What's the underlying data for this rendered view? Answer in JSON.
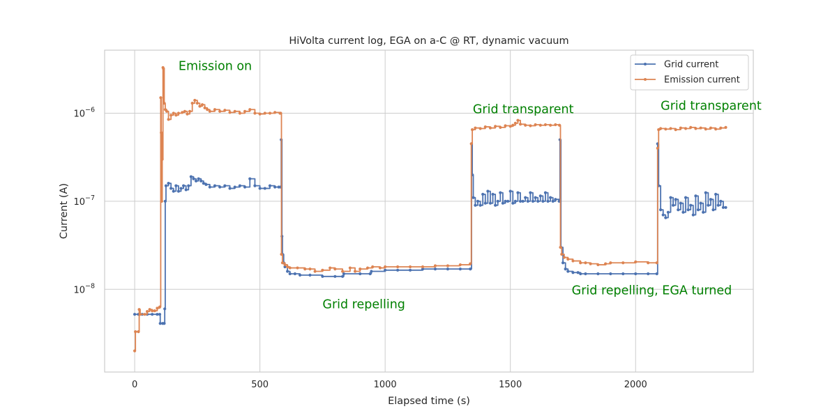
{
  "chart_data": {
    "type": "line",
    "title": "HiVolta current log, EGA on a-C @ RT, dynamic vacuum",
    "xlabel": "Elapsed time (s)",
    "ylabel": "Current (A)",
    "xlim": [
      -120,
      2470
    ],
    "ylim": [
      1.15e-09,
      5.2e-06
    ],
    "yscale": "log",
    "grid": true,
    "legend_position": "top-right",
    "x_ticks": [
      {
        "value": 0,
        "label": "0"
      },
      {
        "value": 500,
        "label": "500"
      },
      {
        "value": 1000,
        "label": "1000"
      },
      {
        "value": 1500,
        "label": "1500"
      },
      {
        "value": 2000,
        "label": "2000"
      }
    ],
    "y_ticks": [
      {
        "value": 1e-08,
        "base": "10",
        "exp": "−8"
      },
      {
        "value": 1e-07,
        "base": "10",
        "exp": "−7"
      },
      {
        "value": 1e-06,
        "base": "10",
        "exp": "−6"
      }
    ],
    "series": [
      {
        "name": "Grid current",
        "color": "#4c72b0",
        "points": [
          [
            0,
            5.2e-09
          ],
          [
            15,
            5.2e-09
          ],
          [
            30,
            5.2e-09
          ],
          [
            50,
            5.2e-09
          ],
          [
            70,
            5.2e-09
          ],
          [
            90,
            5.2e-09
          ],
          [
            100,
            5.2e-09
          ],
          [
            102,
            4.1e-09
          ],
          [
            112,
            4.1e-09
          ],
          [
            118,
            4.1e-09
          ],
          [
            120,
            6e-09
          ],
          [
            122,
            1e-07
          ],
          [
            125,
            1.5e-07
          ],
          [
            135,
            1.6e-07
          ],
          [
            145,
            1.4e-07
          ],
          [
            155,
            1.3e-07
          ],
          [
            165,
            1.5e-07
          ],
          [
            175,
            1.3e-07
          ],
          [
            185,
            1.4e-07
          ],
          [
            195,
            1.5e-07
          ],
          [
            205,
            1.35e-07
          ],
          [
            215,
            1.5e-07
          ],
          [
            225,
            1.9e-07
          ],
          [
            235,
            1.8e-07
          ],
          [
            245,
            1.7e-07
          ],
          [
            255,
            1.8e-07
          ],
          [
            265,
            1.7e-07
          ],
          [
            275,
            1.6e-07
          ],
          [
            285,
            1.55e-07
          ],
          [
            300,
            1.45e-07
          ],
          [
            320,
            1.5e-07
          ],
          [
            340,
            1.45e-07
          ],
          [
            360,
            1.5e-07
          ],
          [
            380,
            1.4e-07
          ],
          [
            400,
            1.45e-07
          ],
          [
            420,
            1.5e-07
          ],
          [
            440,
            1.45e-07
          ],
          [
            460,
            1.8e-07
          ],
          [
            480,
            1.5e-07
          ],
          [
            500,
            1.4e-07
          ],
          [
            520,
            1.4e-07
          ],
          [
            540,
            1.5e-07
          ],
          [
            560,
            1.45e-07
          ],
          [
            575,
            1.45e-07
          ],
          [
            582,
            1.45e-07
          ],
          [
            585,
            5e-07
          ],
          [
            588,
            4e-08
          ],
          [
            590,
            2.5e-08
          ],
          [
            595,
            2e-08
          ],
          [
            600,
            1.8e-08
          ],
          [
            610,
            1.6e-08
          ],
          [
            620,
            1.5e-08
          ],
          [
            640,
            1.5e-08
          ],
          [
            660,
            1.45e-08
          ],
          [
            700,
            1.45e-08
          ],
          [
            750,
            1.4e-08
          ],
          [
            800,
            1.4e-08
          ],
          [
            830,
            1.4e-08
          ],
          [
            835,
            1.5e-08
          ],
          [
            900,
            1.5e-08
          ],
          [
            940,
            1.5e-08
          ],
          [
            945,
            1.6e-08
          ],
          [
            1000,
            1.65e-08
          ],
          [
            1050,
            1.65e-08
          ],
          [
            1100,
            1.65e-08
          ],
          [
            1150,
            1.7e-08
          ],
          [
            1200,
            1.7e-08
          ],
          [
            1250,
            1.7e-08
          ],
          [
            1300,
            1.7e-08
          ],
          [
            1340,
            1.7e-08
          ],
          [
            1345,
            4.5e-07
          ],
          [
            1348,
            2e-07
          ],
          [
            1352,
            1.1e-07
          ],
          [
            1360,
            9e-08
          ],
          [
            1370,
            1e-07
          ],
          [
            1380,
            9e-08
          ],
          [
            1390,
            1.2e-07
          ],
          [
            1400,
            9.5e-08
          ],
          [
            1410,
            1.3e-07
          ],
          [
            1420,
            9.5e-08
          ],
          [
            1430,
            1.2e-07
          ],
          [
            1440,
            9e-08
          ],
          [
            1450,
            1e-07
          ],
          [
            1460,
            1.25e-07
          ],
          [
            1470,
            9.5e-08
          ],
          [
            1480,
            1e-07
          ],
          [
            1490,
            1e-07
          ],
          [
            1500,
            1.3e-07
          ],
          [
            1510,
            9.5e-08
          ],
          [
            1520,
            1e-07
          ],
          [
            1530,
            1.25e-07
          ],
          [
            1540,
            1e-07
          ],
          [
            1550,
            1e-07
          ],
          [
            1560,
            1.1e-07
          ],
          [
            1570,
            1e-07
          ],
          [
            1580,
            1.25e-07
          ],
          [
            1590,
            1e-07
          ],
          [
            1600,
            1.1e-07
          ],
          [
            1610,
            1e-07
          ],
          [
            1620,
            1.15e-07
          ],
          [
            1630,
            1e-07
          ],
          [
            1640,
            1.25e-07
          ],
          [
            1650,
            1e-07
          ],
          [
            1660,
            1.1e-07
          ],
          [
            1670,
            1e-07
          ],
          [
            1680,
            1.05e-07
          ],
          [
            1695,
            1e-07
          ],
          [
            1698,
            5e-07
          ],
          [
            1702,
            3e-08
          ],
          [
            1710,
            2e-08
          ],
          [
            1720,
            1.7e-08
          ],
          [
            1730,
            1.6e-08
          ],
          [
            1750,
            1.55e-08
          ],
          [
            1770,
            1.55e-08
          ],
          [
            1780,
            1.5e-08
          ],
          [
            1800,
            1.5e-08
          ],
          [
            1850,
            1.5e-08
          ],
          [
            1900,
            1.5e-08
          ],
          [
            1950,
            1.5e-08
          ],
          [
            2000,
            1.5e-08
          ],
          [
            2050,
            1.5e-08
          ],
          [
            2085,
            1.5e-08
          ],
          [
            2088,
            4.5e-07
          ],
          [
            2092,
            1.5e-07
          ],
          [
            2100,
            8e-08
          ],
          [
            2110,
            7e-08
          ],
          [
            2120,
            6.5e-08
          ],
          [
            2130,
            7.5e-08
          ],
          [
            2140,
            1.1e-07
          ],
          [
            2150,
            9e-08
          ],
          [
            2160,
            1.05e-07
          ],
          [
            2170,
            8e-08
          ],
          [
            2180,
            9.5e-08
          ],
          [
            2190,
            7.5e-08
          ],
          [
            2200,
            1.1e-07
          ],
          [
            2210,
            8e-08
          ],
          [
            2220,
            9e-08
          ],
          [
            2230,
            7e-08
          ],
          [
            2240,
            1.15e-07
          ],
          [
            2250,
            8e-08
          ],
          [
            2260,
            9.5e-08
          ],
          [
            2270,
            7.5e-08
          ],
          [
            2280,
            1.25e-07
          ],
          [
            2290,
            9e-08
          ],
          [
            2300,
            1.05e-07
          ],
          [
            2310,
            8e-08
          ],
          [
            2320,
            1.2e-07
          ],
          [
            2330,
            9e-08
          ],
          [
            2340,
            1e-07
          ],
          [
            2350,
            8.5e-08
          ],
          [
            2360,
            8.5e-08
          ]
        ]
      },
      {
        "name": "Emission current",
        "color": "#dd8452",
        "points": [
          [
            0,
            2e-09
          ],
          [
            3,
            3.3e-09
          ],
          [
            15,
            3.3e-09
          ],
          [
            18,
            5.9e-09
          ],
          [
            22,
            5.2e-09
          ],
          [
            40,
            5.2e-09
          ],
          [
            50,
            5.6e-09
          ],
          [
            60,
            5.9e-09
          ],
          [
            70,
            5.7e-09
          ],
          [
            80,
            5.7e-09
          ],
          [
            90,
            6.1e-09
          ],
          [
            100,
            6.3e-09
          ],
          [
            104,
            1.5e-06
          ],
          [
            106,
            6e-07
          ],
          [
            108,
            1e-07
          ],
          [
            110,
            3e-07
          ],
          [
            113,
            3.3e-06
          ],
          [
            115,
            3.2e-06
          ],
          [
            118,
            1.3e-06
          ],
          [
            122,
            1.1e-06
          ],
          [
            128,
            1.05e-06
          ],
          [
            135,
            8.5e-07
          ],
          [
            145,
            9.5e-07
          ],
          [
            155,
            1e-06
          ],
          [
            165,
            9.5e-07
          ],
          [
            175,
            1e-06
          ],
          [
            190,
            1.02e-06
          ],
          [
            200,
            1.05e-06
          ],
          [
            210,
            9.8e-07
          ],
          [
            220,
            1.05e-06
          ],
          [
            230,
            1.3e-06
          ],
          [
            240,
            1.4e-06
          ],
          [
            250,
            1.3e-06
          ],
          [
            260,
            1.2e-06
          ],
          [
            270,
            1.25e-06
          ],
          [
            280,
            1.15e-06
          ],
          [
            290,
            1.1e-06
          ],
          [
            300,
            1.05e-06
          ],
          [
            320,
            1.1e-06
          ],
          [
            340,
            1.05e-06
          ],
          [
            360,
            1.08e-06
          ],
          [
            380,
            1.02e-06
          ],
          [
            400,
            1.05e-06
          ],
          [
            420,
            1e-06
          ],
          [
            440,
            1.05e-06
          ],
          [
            460,
            1.1e-06
          ],
          [
            480,
            1e-06
          ],
          [
            500,
            9.8e-07
          ],
          [
            520,
            1e-06
          ],
          [
            540,
            1e-06
          ],
          [
            560,
            1.02e-06
          ],
          [
            580,
            1e-06
          ],
          [
            583,
            1e-06
          ],
          [
            586,
            2.5e-08
          ],
          [
            590,
            2e-08
          ],
          [
            600,
            1.9e-08
          ],
          [
            610,
            1.8e-08
          ],
          [
            620,
            1.75e-08
          ],
          [
            650,
            1.75e-08
          ],
          [
            680,
            1.7e-08
          ],
          [
            700,
            1.7e-08
          ],
          [
            720,
            1.6e-08
          ],
          [
            750,
            1.65e-08
          ],
          [
            780,
            1.75e-08
          ],
          [
            800,
            1.7e-08
          ],
          [
            830,
            1.6e-08
          ],
          [
            860,
            1.75e-08
          ],
          [
            880,
            1.6e-08
          ],
          [
            900,
            1.7e-08
          ],
          [
            930,
            1.75e-08
          ],
          [
            950,
            1.8e-08
          ],
          [
            980,
            1.75e-08
          ],
          [
            1000,
            1.8e-08
          ],
          [
            1050,
            1.8e-08
          ],
          [
            1100,
            1.8e-08
          ],
          [
            1150,
            1.8e-08
          ],
          [
            1200,
            1.85e-08
          ],
          [
            1250,
            1.85e-08
          ],
          [
            1300,
            1.9e-08
          ],
          [
            1340,
            1.95e-08
          ],
          [
            1344,
            4.5e-07
          ],
          [
            1348,
            6.5e-07
          ],
          [
            1360,
            6.8e-07
          ],
          [
            1380,
            6.7e-07
          ],
          [
            1400,
            7e-07
          ],
          [
            1420,
            6.8e-07
          ],
          [
            1440,
            7.1e-07
          ],
          [
            1460,
            6.9e-07
          ],
          [
            1480,
            7.2e-07
          ],
          [
            1500,
            7.1e-07
          ],
          [
            1510,
            7.3e-07
          ],
          [
            1520,
            7.7e-07
          ],
          [
            1530,
            8.3e-07
          ],
          [
            1540,
            7.5e-07
          ],
          [
            1560,
            7.3e-07
          ],
          [
            1580,
            7.2e-07
          ],
          [
            1600,
            7.4e-07
          ],
          [
            1620,
            7.3e-07
          ],
          [
            1640,
            7.4e-07
          ],
          [
            1660,
            7.3e-07
          ],
          [
            1680,
            7.4e-07
          ],
          [
            1696,
            7.3e-07
          ],
          [
            1700,
            3e-08
          ],
          [
            1705,
            2.5e-08
          ],
          [
            1715,
            2.3e-08
          ],
          [
            1730,
            2.2e-08
          ],
          [
            1750,
            2.1e-08
          ],
          [
            1780,
            2e-08
          ],
          [
            1800,
            2e-08
          ],
          [
            1820,
            1.95e-08
          ],
          [
            1850,
            1.9e-08
          ],
          [
            1880,
            1.95e-08
          ],
          [
            1900,
            2e-08
          ],
          [
            1950,
            2e-08
          ],
          [
            2000,
            2.05e-08
          ],
          [
            2050,
            2e-08
          ],
          [
            2085,
            2e-08
          ],
          [
            2088,
            4e-07
          ],
          [
            2092,
            6.5e-07
          ],
          [
            2100,
            6.7e-07
          ],
          [
            2120,
            6.6e-07
          ],
          [
            2140,
            6.7e-07
          ],
          [
            2160,
            6.5e-07
          ],
          [
            2180,
            6.8e-07
          ],
          [
            2200,
            6.7e-07
          ],
          [
            2220,
            6.9e-07
          ],
          [
            2240,
            6.7e-07
          ],
          [
            2260,
            6.8e-07
          ],
          [
            2280,
            6.6e-07
          ],
          [
            2300,
            6.8e-07
          ],
          [
            2320,
            6.6e-07
          ],
          [
            2340,
            6.8e-07
          ],
          [
            2360,
            6.9e-07
          ]
        ]
      }
    ],
    "annotations": [
      {
        "text": "Emission on",
        "x": 175,
        "y": 3.1e-06,
        "color": "#008000"
      },
      {
        "text": "Grid transparent",
        "x": 1350,
        "y": 1e-06,
        "color": "#008000"
      },
      {
        "text": "Grid transparent",
        "x": 2100,
        "y": 1.1e-06,
        "color": "#008000"
      },
      {
        "text": "Grid repelling",
        "x": 750,
        "y": 6.1e-09,
        "color": "#008000"
      },
      {
        "text": "Grid repelling, EGA turned",
        "x": 1745,
        "y": 8.8e-09,
        "color": "#008000"
      }
    ]
  }
}
